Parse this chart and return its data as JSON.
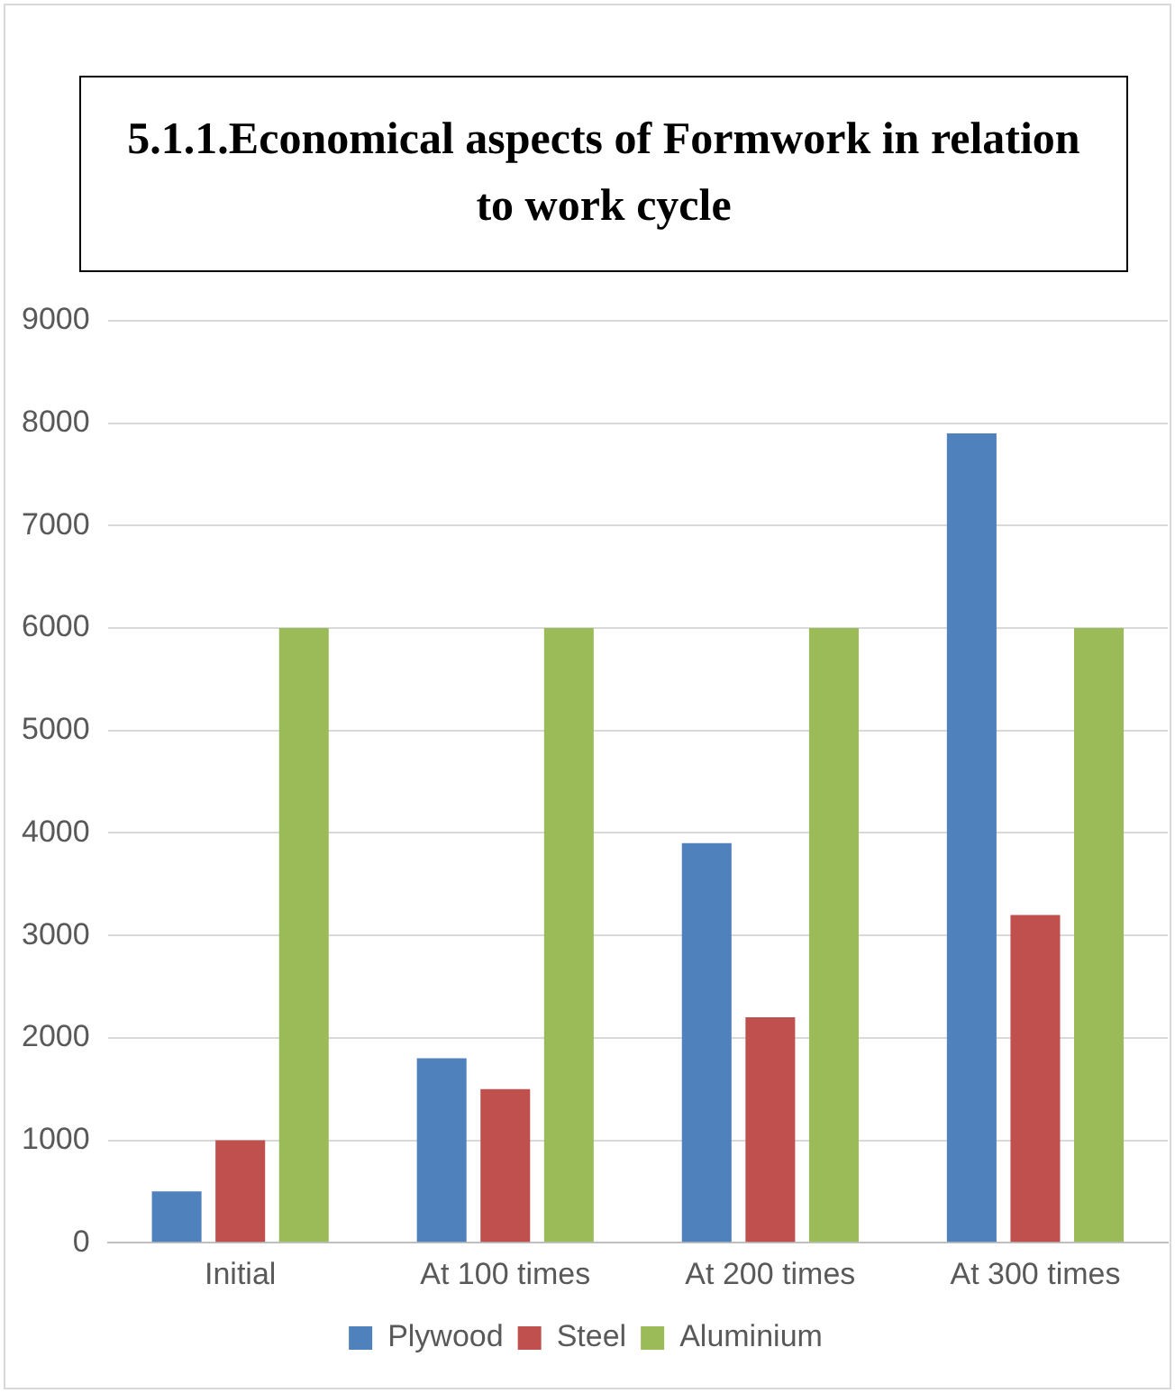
{
  "chart_data": {
    "type": "bar",
    "title": "5.1.1.Economical aspects of Formwork in relation to work cycle",
    "categories": [
      "Initial",
      "At 100 times",
      "At 200 times",
      "At 300 times"
    ],
    "series": [
      {
        "name": "Plywood",
        "color": "#4f81bd",
        "values": [
          500,
          1800,
          3900,
          7900
        ]
      },
      {
        "name": "Steel",
        "color": "#c0504d",
        "values": [
          1000,
          1500,
          2200,
          3200
        ]
      },
      {
        "name": "Aluminium",
        "color": "#9bbb59",
        "values": [
          6000,
          6000,
          6000,
          6000
        ]
      }
    ],
    "ylim": [
      0,
      9000
    ],
    "yticks": [
      0,
      1000,
      2000,
      3000,
      4000,
      5000,
      6000,
      7000,
      8000,
      9000
    ],
    "grid": "y",
    "legend": "bottom"
  }
}
